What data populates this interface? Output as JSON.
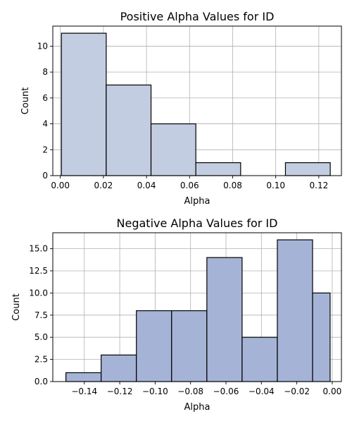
{
  "chart_data": [
    {
      "type": "bar",
      "title": "Positive Alpha Values for ID",
      "xlabel": "Alpha",
      "ylabel": "Count",
      "xlim": [
        -0.0035,
        0.1305
      ],
      "ylim": [
        0,
        11.55
      ],
      "xticks": [
        0.0,
        0.02,
        0.04,
        0.06,
        0.08,
        0.1,
        0.12
      ],
      "xtick_labels": [
        "0.00",
        "0.02",
        "0.04",
        "0.06",
        "0.08",
        "0.10",
        "0.12"
      ],
      "yticks": [
        0,
        2,
        4,
        6,
        8,
        10
      ],
      "ytick_labels": [
        "0",
        "2",
        "4",
        "6",
        "8",
        "10"
      ],
      "grid": true,
      "color": "#c3cde2",
      "bins": [
        {
          "x0": 0.0005,
          "x1": 0.0213,
          "count": 11
        },
        {
          "x0": 0.0213,
          "x1": 0.0421,
          "count": 7
        },
        {
          "x0": 0.0421,
          "x1": 0.0629,
          "count": 4
        },
        {
          "x0": 0.0629,
          "x1": 0.0837,
          "count": 1
        },
        {
          "x0": 0.0837,
          "x1": 0.1045,
          "count": 0
        },
        {
          "x0": 0.1045,
          "x1": 0.1253,
          "count": 1
        }
      ]
    },
    {
      "type": "bar",
      "title": "Negative Alpha Values for ID",
      "xlabel": "Alpha",
      "ylabel": "Count",
      "xlim": [
        -0.1578,
        0.0052
      ],
      "ylim": [
        0,
        16.8
      ],
      "xticks": [
        -0.14,
        -0.12,
        -0.1,
        -0.08,
        -0.06,
        -0.04,
        -0.02,
        0.0
      ],
      "xtick_labels": [
        "−0.14",
        "−0.12",
        "−0.10",
        "−0.08",
        "−0.06",
        "−0.04",
        "−0.02",
        "0.00"
      ],
      "yticks": [
        0,
        2.5,
        5,
        7.5,
        10,
        12.5,
        15
      ],
      "ytick_labels": [
        "0.0",
        "2.5",
        "5.0",
        "7.5",
        "10.0",
        "12.5",
        "15.0"
      ],
      "grid": true,
      "color": "#a5b3d6",
      "bins": [
        {
          "x0": -0.1504,
          "x1": -0.1305,
          "count": 1
        },
        {
          "x0": -0.1305,
          "x1": -0.1106,
          "count": 3
        },
        {
          "x0": -0.1106,
          "x1": -0.0907,
          "count": 8
        },
        {
          "x0": -0.0907,
          "x1": -0.0708,
          "count": 8
        },
        {
          "x0": -0.0708,
          "x1": -0.0509,
          "count": 14
        },
        {
          "x0": -0.0509,
          "x1": -0.031,
          "count": 5
        },
        {
          "x0": -0.031,
          "x1": -0.0111,
          "count": 16
        },
        {
          "x0": -0.0111,
          "x1": -0.0012,
          "count": 10
        }
      ]
    }
  ]
}
